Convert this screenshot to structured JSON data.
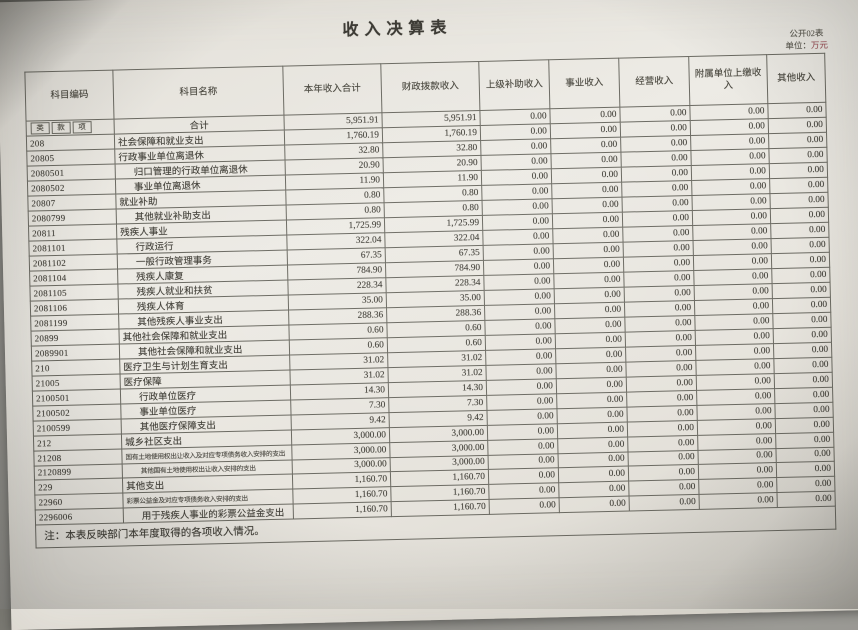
{
  "meta": {
    "title": "收入决算表",
    "sheet_label": "公开02表",
    "unit_label": "单位：",
    "unit_value": "万元",
    "note": "注：本表反映部门本年度取得的各项收入情况。"
  },
  "colors": {
    "paper": "#eae7e1",
    "ink": "#46443d",
    "grid_line": "#6b6a62",
    "unit_red": "#a4535b",
    "photo_background": "#8f8e8a"
  },
  "table": {
    "columns": [
      "科目编码",
      "科目名称",
      "本年收入合计",
      "财政拨款收入",
      "上级补助收入",
      "事业收入",
      "经营收入",
      "附属单位上缴收入",
      "其他收入"
    ],
    "code_sublabels": [
      "类",
      "款",
      "项"
    ],
    "rows": [
      {
        "code": "",
        "name": "合计",
        "style": "total",
        "values": [
          "5,951.91",
          "5,951.91",
          "0.00",
          "0.00",
          "0.00",
          "0.00",
          "0.00"
        ]
      },
      {
        "code": "208",
        "name": "社会保障和就业支出",
        "style": "l0",
        "values": [
          "1,760.19",
          "1,760.19",
          "0.00",
          "0.00",
          "0.00",
          "0.00",
          "0.00"
        ]
      },
      {
        "code": "20805",
        "name": "行政事业单位离退休",
        "style": "l0",
        "values": [
          "32.80",
          "32.80",
          "0.00",
          "0.00",
          "0.00",
          "0.00",
          "0.00"
        ]
      },
      {
        "code": "2080501",
        "name": "归口管理的行政单位离退休",
        "style": "l1",
        "values": [
          "20.90",
          "20.90",
          "0.00",
          "0.00",
          "0.00",
          "0.00",
          "0.00"
        ]
      },
      {
        "code": "2080502",
        "name": "事业单位离退休",
        "style": "l1",
        "values": [
          "11.90",
          "11.90",
          "0.00",
          "0.00",
          "0.00",
          "0.00",
          "0.00"
        ]
      },
      {
        "code": "20807",
        "name": "就业补助",
        "style": "l0",
        "values": [
          "0.80",
          "0.80",
          "0.00",
          "0.00",
          "0.00",
          "0.00",
          "0.00"
        ]
      },
      {
        "code": "2080799",
        "name": "其他就业补助支出",
        "style": "l1",
        "values": [
          "0.80",
          "0.80",
          "0.00",
          "0.00",
          "0.00",
          "0.00",
          "0.00"
        ]
      },
      {
        "code": "20811",
        "name": "残疾人事业",
        "style": "l0",
        "values": [
          "1,725.99",
          "1,725.99",
          "0.00",
          "0.00",
          "0.00",
          "0.00",
          "0.00"
        ]
      },
      {
        "code": "2081101",
        "name": "行政运行",
        "style": "l1",
        "values": [
          "322.04",
          "322.04",
          "0.00",
          "0.00",
          "0.00",
          "0.00",
          "0.00"
        ]
      },
      {
        "code": "2081102",
        "name": "一般行政管理事务",
        "style": "l1",
        "values": [
          "67.35",
          "67.35",
          "0.00",
          "0.00",
          "0.00",
          "0.00",
          "0.00"
        ]
      },
      {
        "code": "2081104",
        "name": "残疾人康复",
        "style": "l1",
        "values": [
          "784.90",
          "784.90",
          "0.00",
          "0.00",
          "0.00",
          "0.00",
          "0.00"
        ]
      },
      {
        "code": "2081105",
        "name": "残疾人就业和扶贫",
        "style": "l1",
        "values": [
          "228.34",
          "228.34",
          "0.00",
          "0.00",
          "0.00",
          "0.00",
          "0.00"
        ]
      },
      {
        "code": "2081106",
        "name": "残疾人体育",
        "style": "l1",
        "values": [
          "35.00",
          "35.00",
          "0.00",
          "0.00",
          "0.00",
          "0.00",
          "0.00"
        ]
      },
      {
        "code": "2081199",
        "name": "其他残疾人事业支出",
        "style": "l1",
        "values": [
          "288.36",
          "288.36",
          "0.00",
          "0.00",
          "0.00",
          "0.00",
          "0.00"
        ]
      },
      {
        "code": "20899",
        "name": "其他社会保障和就业支出",
        "style": "l0",
        "values": [
          "0.60",
          "0.60",
          "0.00",
          "0.00",
          "0.00",
          "0.00",
          "0.00"
        ]
      },
      {
        "code": "2089901",
        "name": "其他社会保障和就业支出",
        "style": "l1",
        "values": [
          "0.60",
          "0.60",
          "0.00",
          "0.00",
          "0.00",
          "0.00",
          "0.00"
        ]
      },
      {
        "code": "210",
        "name": "医疗卫生与计划生育支出",
        "style": "l0",
        "values": [
          "31.02",
          "31.02",
          "0.00",
          "0.00",
          "0.00",
          "0.00",
          "0.00"
        ]
      },
      {
        "code": "21005",
        "name": "医疗保障",
        "style": "l0",
        "values": [
          "31.02",
          "31.02",
          "0.00",
          "0.00",
          "0.00",
          "0.00",
          "0.00"
        ]
      },
      {
        "code": "2100501",
        "name": "行政单位医疗",
        "style": "l1",
        "values": [
          "14.30",
          "14.30",
          "0.00",
          "0.00",
          "0.00",
          "0.00",
          "0.00"
        ]
      },
      {
        "code": "2100502",
        "name": "事业单位医疗",
        "style": "l1",
        "values": [
          "7.30",
          "7.30",
          "0.00",
          "0.00",
          "0.00",
          "0.00",
          "0.00"
        ]
      },
      {
        "code": "2100599",
        "name": "其他医疗保障支出",
        "style": "l1",
        "values": [
          "9.42",
          "9.42",
          "0.00",
          "0.00",
          "0.00",
          "0.00",
          "0.00"
        ]
      },
      {
        "code": "212",
        "name": "城乡社区支出",
        "style": "l0",
        "values": [
          "3,000.00",
          "3,000.00",
          "0.00",
          "0.00",
          "0.00",
          "0.00",
          "0.00"
        ]
      },
      {
        "code": "21208",
        "name": "国有土地使用权出让收入及对应专项债务收入安排的支出",
        "style": "l0 small",
        "values": [
          "3,000.00",
          "3,000.00",
          "0.00",
          "0.00",
          "0.00",
          "0.00",
          "0.00"
        ]
      },
      {
        "code": "2120899",
        "name": "其他国有土地使用权出让收入安排的支出",
        "style": "l1 small",
        "values": [
          "3,000.00",
          "3,000.00",
          "0.00",
          "0.00",
          "0.00",
          "0.00",
          "0.00"
        ]
      },
      {
        "code": "229",
        "name": "其他支出",
        "style": "l0",
        "values": [
          "1,160.70",
          "1,160.70",
          "0.00",
          "0.00",
          "0.00",
          "0.00",
          "0.00"
        ]
      },
      {
        "code": "22960",
        "name": "彩票公益金及对应专项债务收入安排的支出",
        "style": "l0 small",
        "values": [
          "1,160.70",
          "1,160.70",
          "0.00",
          "0.00",
          "0.00",
          "0.00",
          "0.00"
        ]
      },
      {
        "code": "2296006",
        "name": "用于残疾人事业的彩票公益金支出",
        "style": "l1",
        "values": [
          "1,160.70",
          "1,160.70",
          "0.00",
          "0.00",
          "0.00",
          "0.00",
          "0.00"
        ]
      }
    ]
  }
}
